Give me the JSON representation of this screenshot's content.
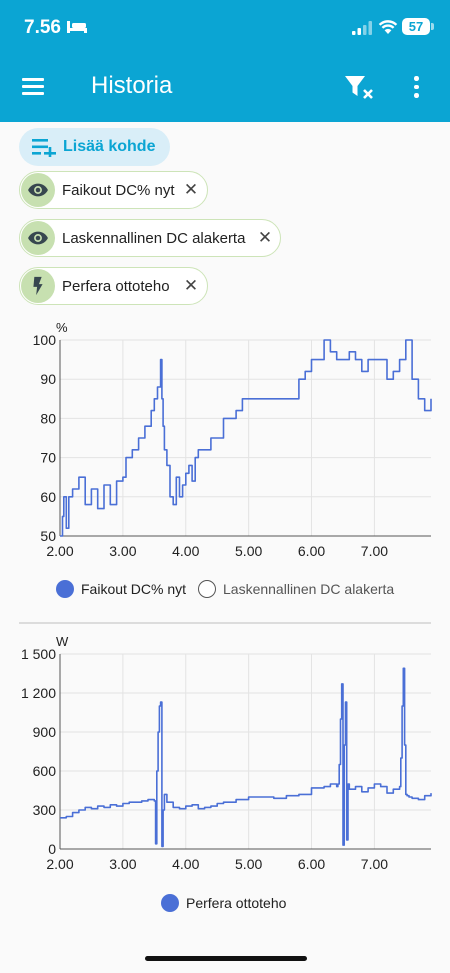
{
  "status_bar": {
    "time": "7.56",
    "battery": "57"
  },
  "app_bar": {
    "title": "Historia"
  },
  "add_target": {
    "label": "Lisää kohde"
  },
  "entities": [
    {
      "label": "Faikout DC% nyt",
      "icon": "eye-icon"
    },
    {
      "label": "Laskennallinen DC alakerta",
      "icon": "eye-icon"
    },
    {
      "label": "Perfera ottoteho",
      "icon": "flash-icon"
    }
  ],
  "colors": {
    "accent": "#0ba5d3",
    "series": "#4a6fd6",
    "chip_icon_bg": "#c7e0b0"
  },
  "chart_data": [
    {
      "type": "line",
      "unit": "%",
      "ylim": [
        50,
        100
      ],
      "yticks": [
        "50",
        "60",
        "70",
        "80",
        "90",
        "100"
      ],
      "xlim": [
        2.0,
        7.9
      ],
      "xticks": [
        "2.00",
        "3.00",
        "4.00",
        "5.00",
        "6.00",
        "7.00"
      ],
      "grid": true,
      "legend": "bottom",
      "series": [
        {
          "name": "Faikout DC% nyt",
          "shown": true,
          "x": [
            2.0,
            2.04,
            2.06,
            2.1,
            2.14,
            2.2,
            2.3,
            2.4,
            2.5,
            2.6,
            2.7,
            2.8,
            2.9,
            3.0,
            3.05,
            3.15,
            3.25,
            3.35,
            3.45,
            3.5,
            3.55,
            3.6,
            3.62,
            3.64,
            3.66,
            3.7,
            3.75,
            3.8,
            3.85,
            3.9,
            3.95,
            4.0,
            4.05,
            4.1,
            4.15,
            4.2,
            4.3,
            4.4,
            4.5,
            4.6,
            4.7,
            4.8,
            4.9,
            5.0,
            5.2,
            5.4,
            5.6,
            5.8,
            5.9,
            6.0,
            6.1,
            6.2,
            6.3,
            6.4,
            6.5,
            6.6,
            6.7,
            6.8,
            6.9,
            7.0,
            7.1,
            7.2,
            7.3,
            7.4,
            7.5,
            7.6,
            7.7,
            7.8,
            7.9
          ],
          "y": [
            50,
            55,
            60,
            52,
            60,
            62,
            65,
            58,
            62,
            57,
            63,
            58,
            64,
            65,
            70,
            72,
            75,
            78,
            82,
            85,
            88,
            95,
            85,
            78,
            72,
            68,
            60,
            58,
            65,
            60,
            63,
            66,
            68,
            64,
            70,
            72,
            72,
            75,
            75,
            80,
            80,
            82,
            85,
            85,
            85,
            85,
            85,
            90,
            92,
            95,
            95,
            100,
            97,
            95,
            95,
            97,
            95,
            92,
            95,
            95,
            95,
            90,
            92,
            95,
            100,
            90,
            85,
            82,
            85
          ]
        },
        {
          "name": "Laskennallinen DC alakerta",
          "shown": false,
          "x": [],
          "y": []
        }
      ]
    },
    {
      "type": "line",
      "unit": "W",
      "ylim": [
        0,
        1500
      ],
      "yticks": [
        "0",
        "300",
        "600",
        "900",
        "1 200",
        "1 500"
      ],
      "xlim": [
        2.0,
        7.9
      ],
      "xticks": [
        "2.00",
        "3.00",
        "4.00",
        "5.00",
        "6.00",
        "7.00"
      ],
      "grid": true,
      "legend": "bottom",
      "series": [
        {
          "name": "Perfera ottoteho",
          "shown": true,
          "x": [
            2.0,
            2.1,
            2.2,
            2.3,
            2.4,
            2.5,
            2.6,
            2.7,
            2.8,
            2.9,
            3.0,
            3.1,
            3.2,
            3.3,
            3.4,
            3.5,
            3.52,
            3.54,
            3.56,
            3.58,
            3.6,
            3.62,
            3.64,
            3.66,
            3.7,
            3.8,
            3.9,
            4.0,
            4.1,
            4.2,
            4.3,
            4.4,
            4.5,
            4.6,
            4.8,
            5.0,
            5.2,
            5.4,
            5.6,
            5.8,
            6.0,
            6.2,
            6.3,
            6.4,
            6.42,
            6.44,
            6.46,
            6.48,
            6.5,
            6.52,
            6.54,
            6.56,
            6.58,
            6.6,
            6.7,
            6.8,
            6.9,
            7.0,
            7.1,
            7.2,
            7.3,
            7.4,
            7.42,
            7.44,
            7.46,
            7.48,
            7.5,
            7.52,
            7.55,
            7.6,
            7.7,
            7.8,
            7.9
          ],
          "y": [
            240,
            250,
            280,
            300,
            320,
            310,
            330,
            320,
            340,
            330,
            350,
            360,
            360,
            370,
            380,
            370,
            40,
            600,
            900,
            1100,
            1130,
            20,
            300,
            420,
            360,
            320,
            310,
            330,
            340,
            310,
            320,
            330,
            350,
            360,
            380,
            400,
            400,
            390,
            410,
            420,
            470,
            480,
            500,
            480,
            500,
            650,
            1000,
            1270,
            30,
            800,
            1130,
            70,
            500,
            460,
            480,
            440,
            470,
            500,
            480,
            430,
            460,
            480,
            700,
            1100,
            1390,
            800,
            420,
            410,
            400,
            390,
            380,
            410,
            430
          ]
        }
      ]
    }
  ]
}
